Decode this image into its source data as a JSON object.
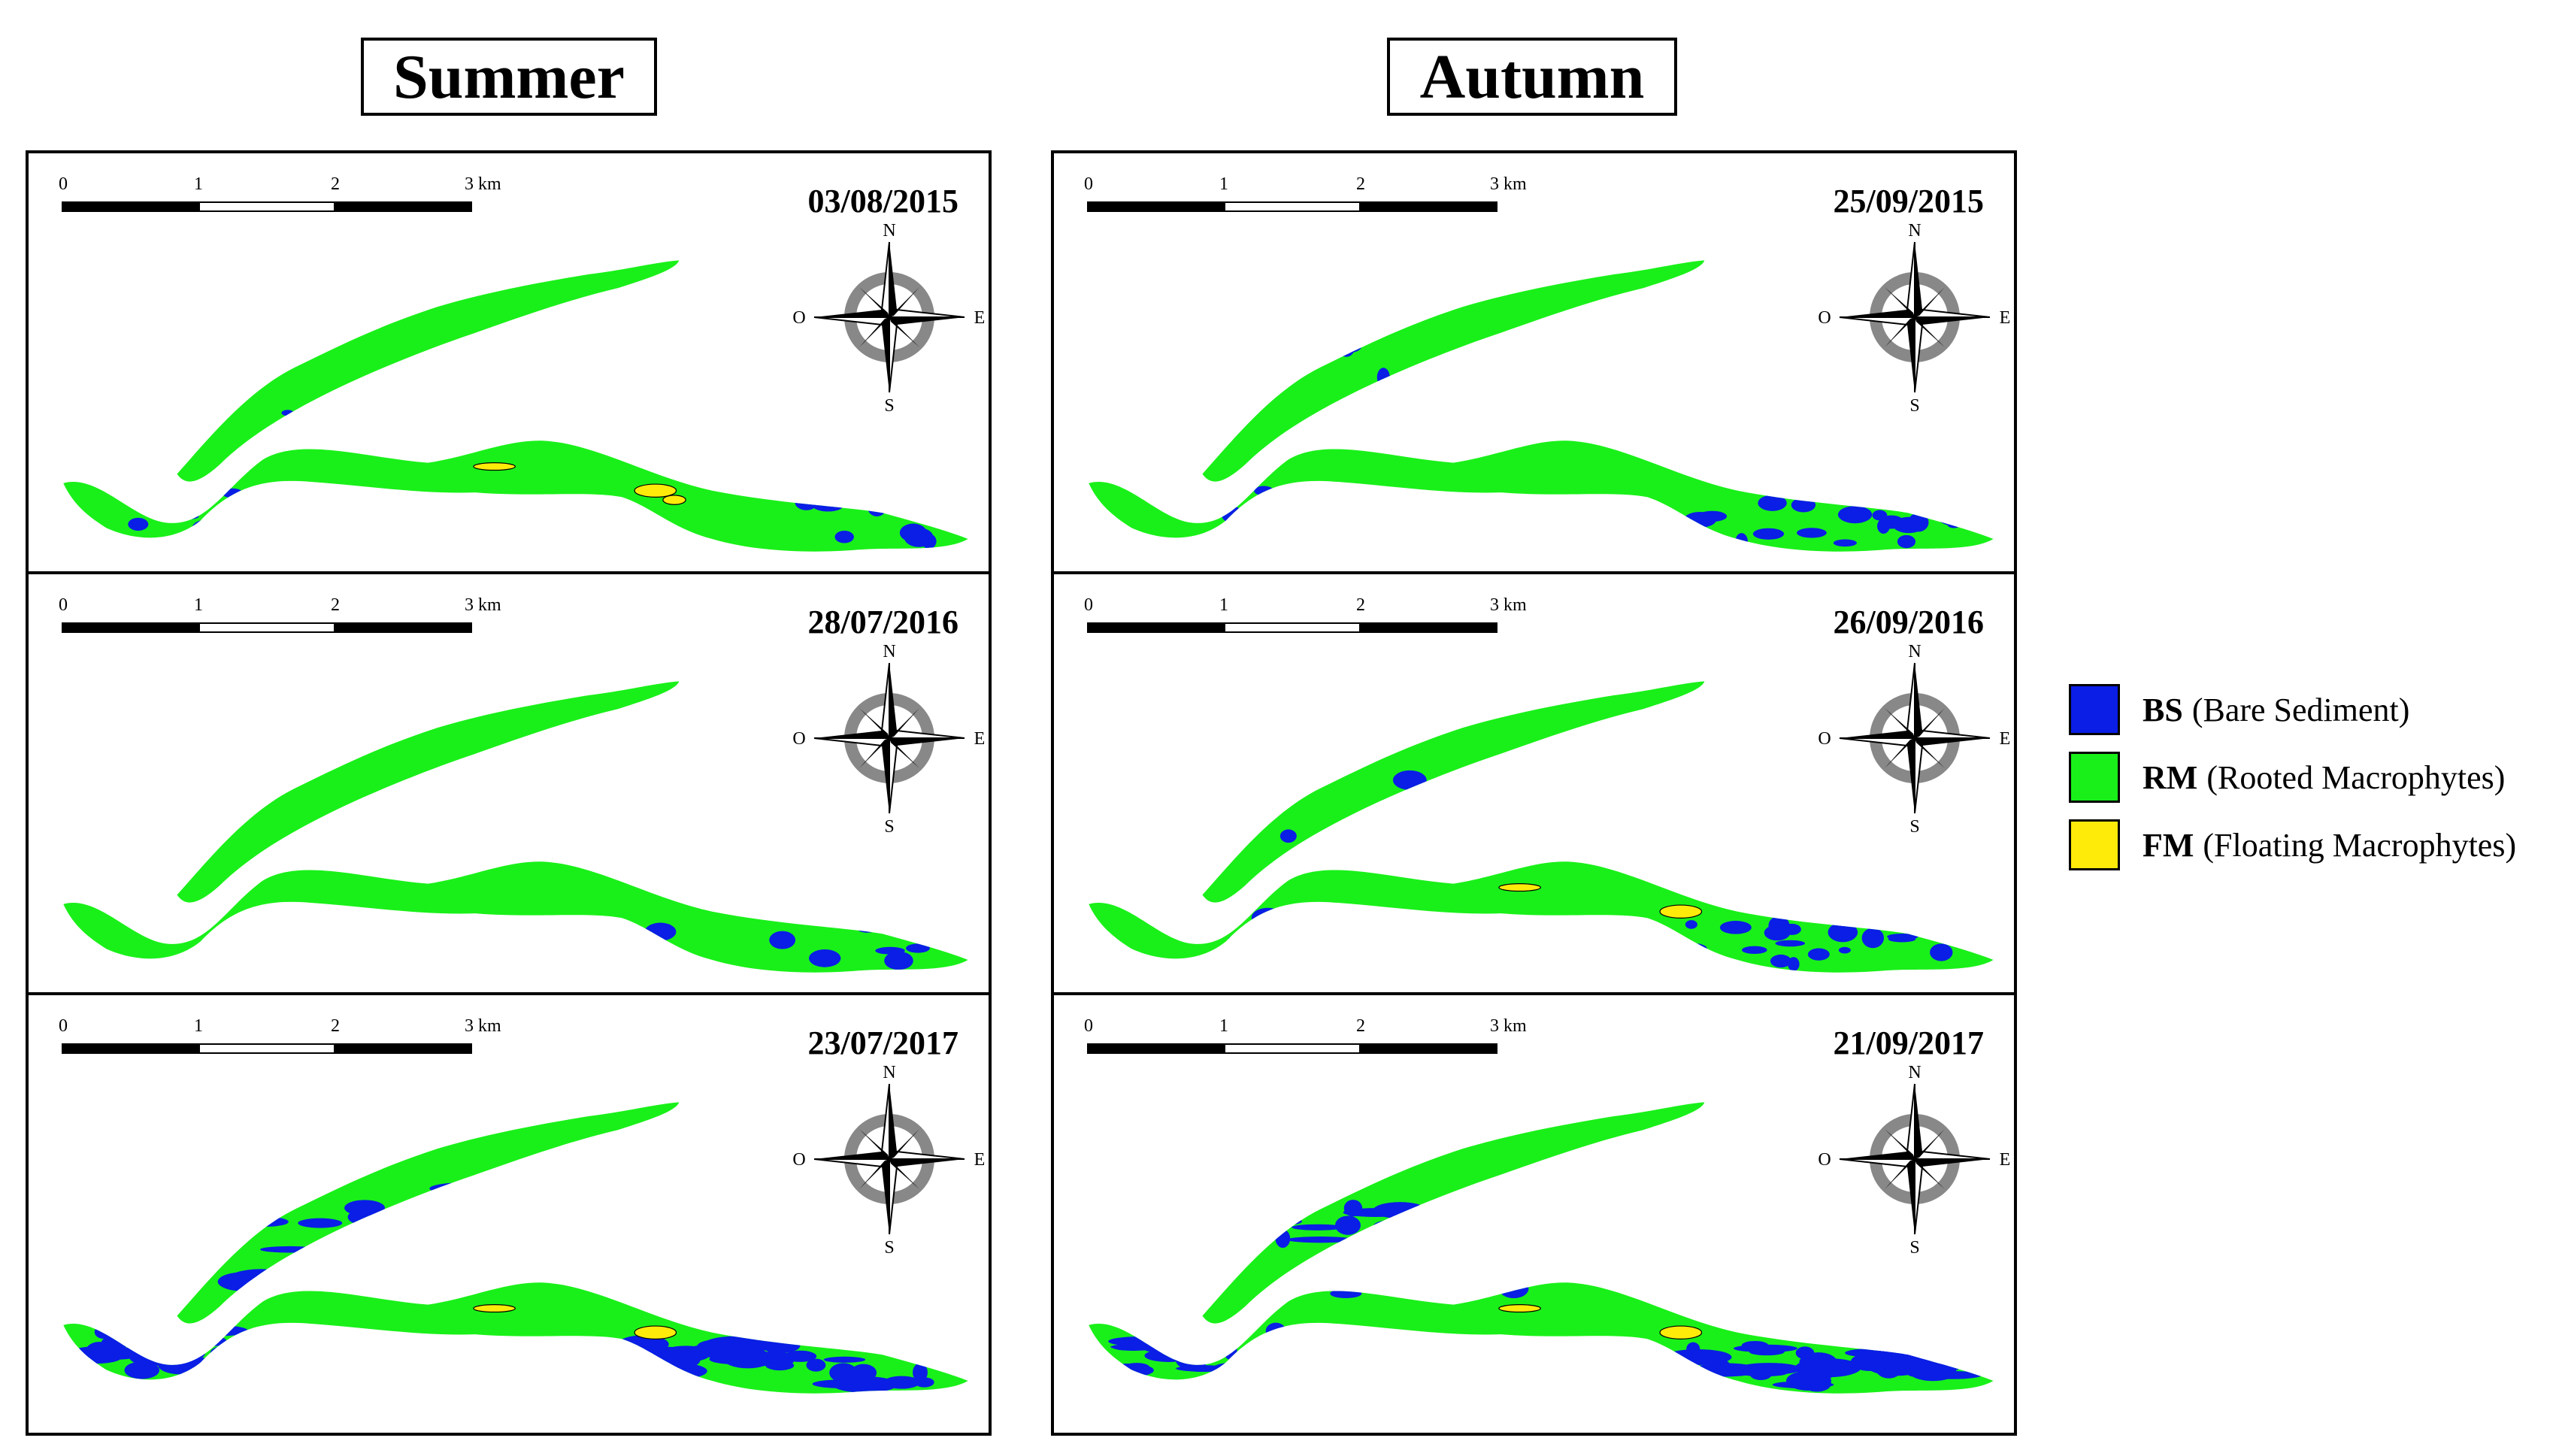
{
  "titles": {
    "summer": "Summer",
    "autumn": "Autumn"
  },
  "colors": {
    "bare_sediment": "#0a1ee6",
    "rooted_macrophytes": "#19f019",
    "floating_macrophytes": "#ffeb0a"
  },
  "scale_bar": {
    "ticks": [
      "0",
      "1",
      "2",
      "3 km"
    ]
  },
  "compass": {
    "north": "N",
    "south": "S",
    "east": "E",
    "west": "O"
  },
  "panels": {
    "summer": [
      {
        "date": "03/08/2015",
        "bare_sediment_level": "low",
        "floating_macrophytes_level": "moderate"
      },
      {
        "date": "28/07/2016",
        "bare_sediment_level": "low",
        "floating_macrophytes_level": "none"
      },
      {
        "date": "23/07/2017",
        "bare_sediment_level": "high",
        "floating_macrophytes_level": "low"
      }
    ],
    "autumn": [
      {
        "date": "25/09/2015",
        "bare_sediment_level": "moderate",
        "floating_macrophytes_level": "none"
      },
      {
        "date": "26/09/2016",
        "bare_sediment_level": "moderate",
        "floating_macrophytes_level": "low"
      },
      {
        "date": "21/09/2017",
        "bare_sediment_level": "high",
        "floating_macrophytes_level": "low"
      }
    ]
  },
  "legend": [
    {
      "code": "BS",
      "label": "(Bare Sediment)",
      "color": "#0a1ee6"
    },
    {
      "code": "RM",
      "label": "(Rooted Macrophytes)",
      "color": "#19f019"
    },
    {
      "code": "FM",
      "label": "(Floating Macrophytes)",
      "color": "#ffeb0a"
    }
  ]
}
